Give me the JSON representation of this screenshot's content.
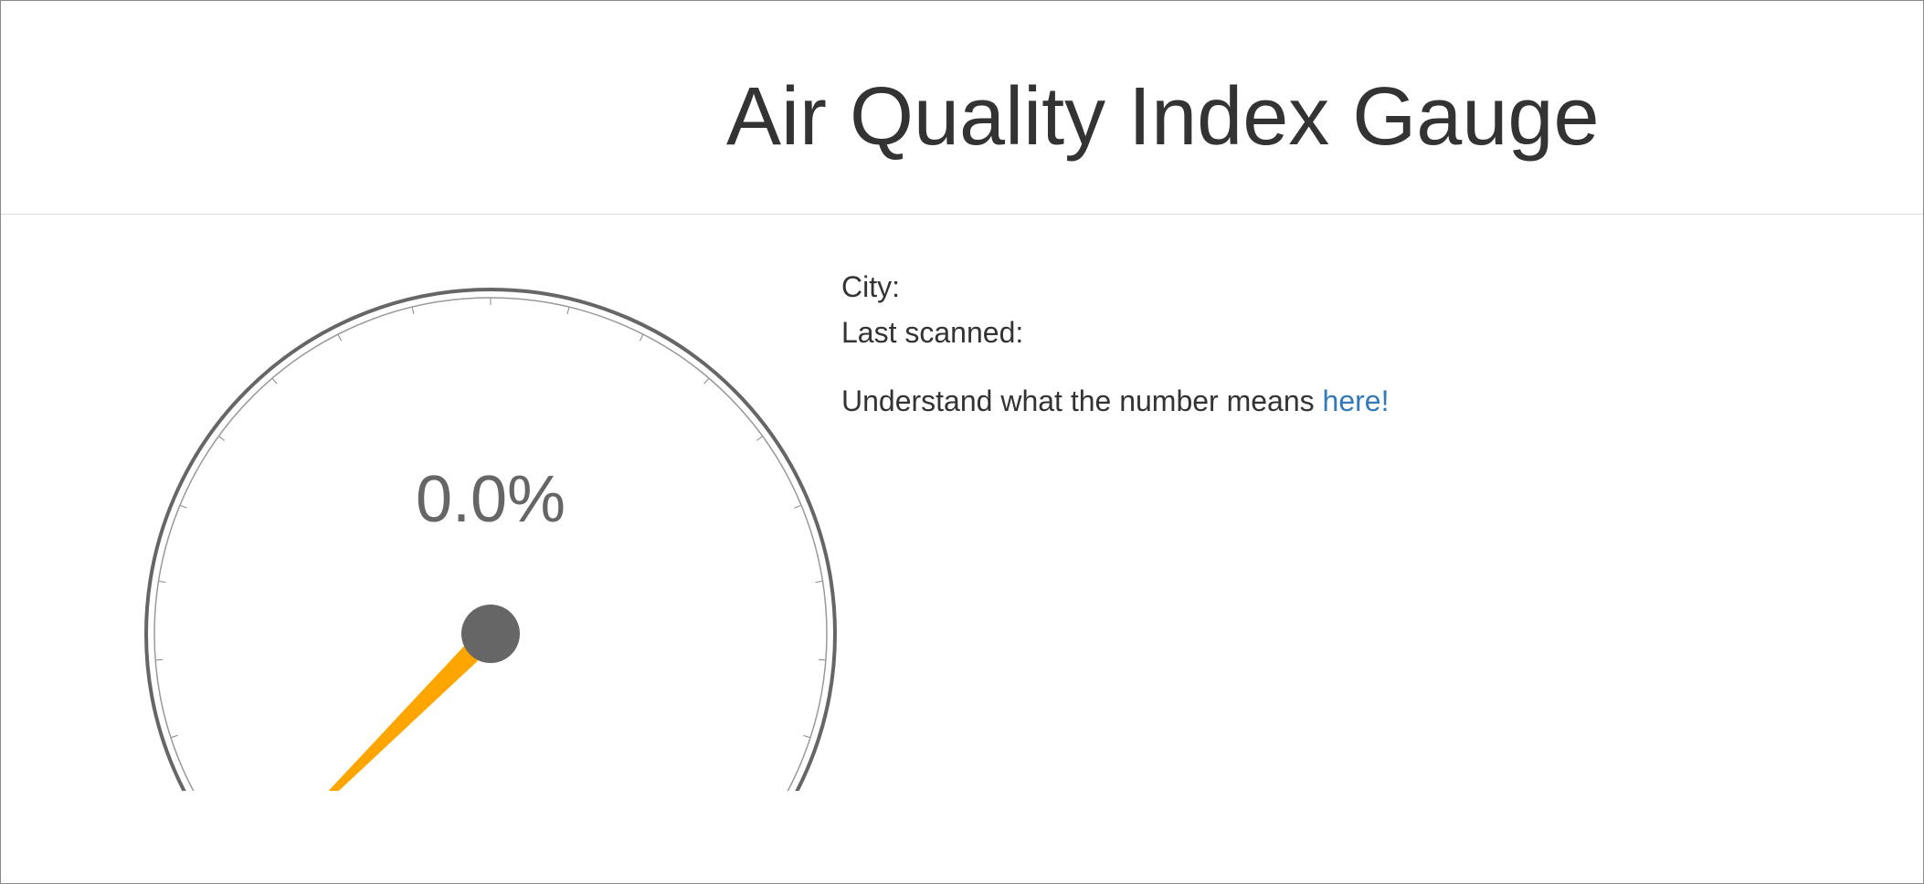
{
  "header": {
    "title": "Air Quality Index Gauge"
  },
  "gauge": {
    "value": 0.0,
    "value_text": "0.0%",
    "min": 0,
    "max": 100,
    "colors": {
      "arc": "#666666",
      "needle": "#FFA500",
      "hub": "#666666",
      "value_text": "#666666"
    },
    "icons": {
      "needle": "gauge-needle",
      "hub": "gauge-hub"
    }
  },
  "info": {
    "city_label": "City:",
    "city_value": "",
    "last_scanned_label": "Last scanned:",
    "last_scanned_value": "",
    "help_text": "Understand what the number means",
    "help_link_text": "here!",
    "link_color": "#337ab7"
  }
}
